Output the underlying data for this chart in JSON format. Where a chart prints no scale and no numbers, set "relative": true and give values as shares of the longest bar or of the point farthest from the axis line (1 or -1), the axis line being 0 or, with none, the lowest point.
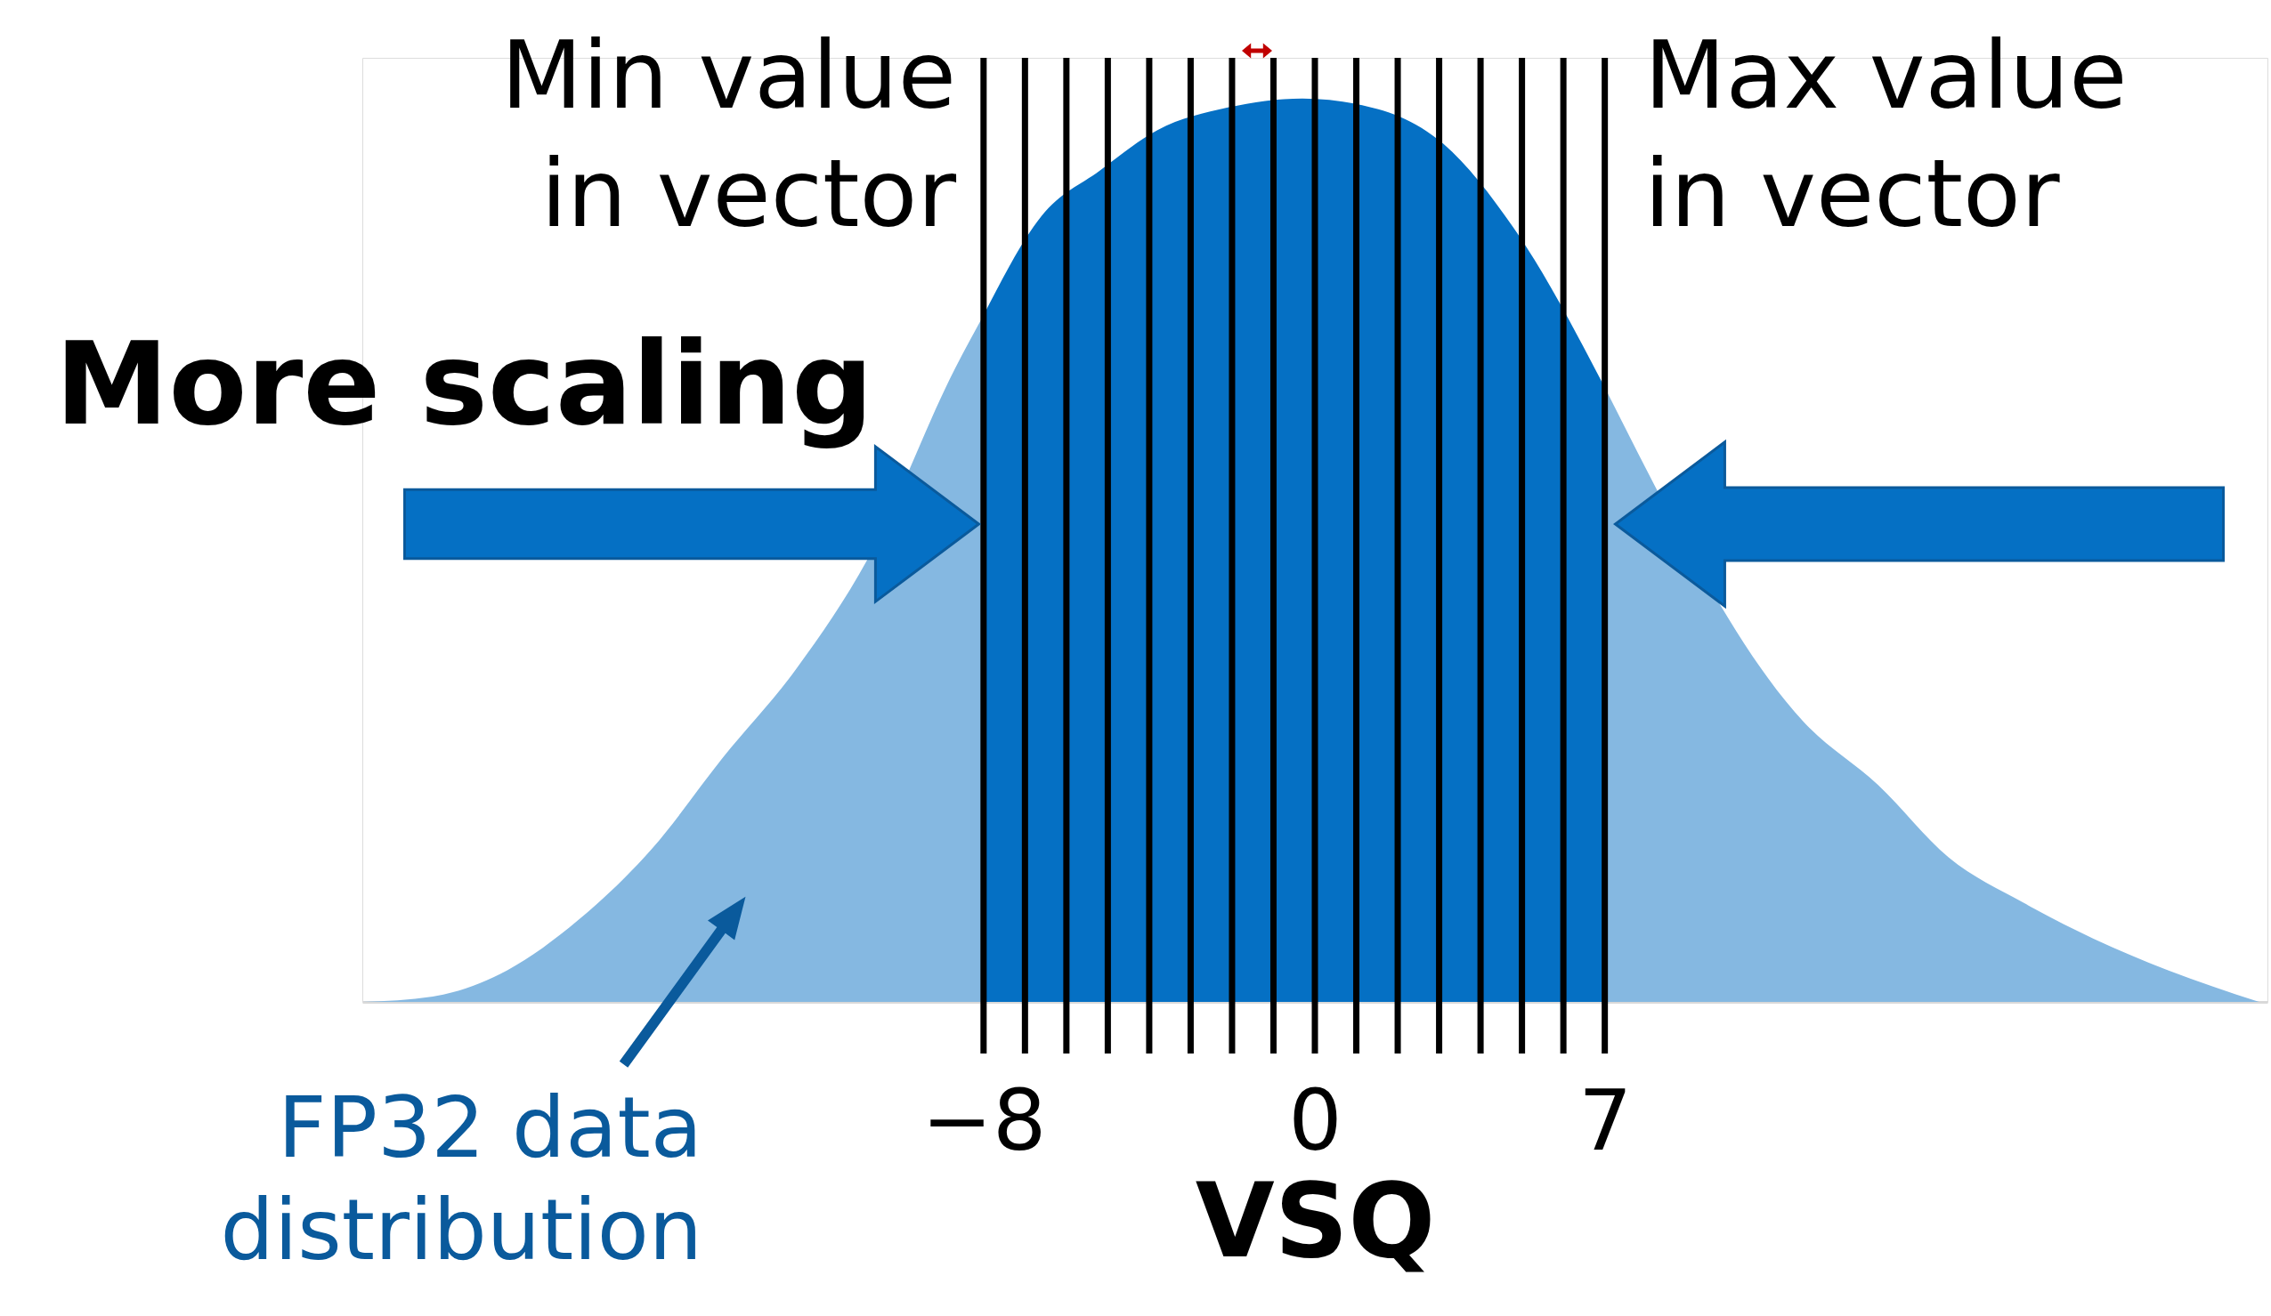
{
  "chart_data": {
    "type": "area",
    "relative": true,
    "xlabel": "VSQ",
    "xlim": [
      -23,
      23
    ],
    "xticks": [
      -8,
      0,
      7
    ],
    "series": [
      {
        "color": "#85b8e1",
        "x": [
          -23.0,
          -21.3,
          -19.5,
          -17.8,
          -16.0,
          -14.3,
          -12.5,
          -10.8,
          -8.7,
          -8.0,
          0,
          7.0,
          11.8,
          13.6,
          15.3,
          17.1,
          18.8,
          20.6,
          22.8
        ],
        "values": [
          0,
          0.006,
          0.035,
          0.09,
          0.17,
          0.27,
          0.37,
          0.49,
          0.7,
          0.76,
          null,
          0.68,
          0.31,
          0.24,
          0.16,
          0.11,
          0.07,
          0.035,
          0
        ]
      },
      {
        "color": "#0570c4",
        "x": [
          -8.0,
          -6.6,
          -5.2,
          -3.8,
          -2.1,
          -0.3,
          1.0,
          3.1,
          4.9,
          7.0
        ],
        "values": [
          0.76,
          0.87,
          0.92,
          0.965,
          0.99,
          1.0,
          0.994,
          0.95,
          0.85,
          0.68
        ]
      }
    ],
    "ref_lines": [
      {
        "axis": "x",
        "value": -8,
        "label": null,
        "color": "#000000"
      },
      {
        "axis": "x",
        "value": -7,
        "label": null,
        "color": "#000000"
      },
      {
        "axis": "x",
        "value": -6,
        "label": null,
        "color": "#000000"
      },
      {
        "axis": "x",
        "value": -5,
        "label": null,
        "color": "#000000"
      },
      {
        "axis": "x",
        "value": -4,
        "label": null,
        "color": "#000000"
      },
      {
        "axis": "x",
        "value": -3,
        "label": null,
        "color": "#000000"
      },
      {
        "axis": "x",
        "value": -2,
        "label": null,
        "color": "#000000"
      },
      {
        "axis": "x",
        "value": -1,
        "label": null,
        "color": "#000000"
      },
      {
        "axis": "x",
        "value": 0,
        "label": null,
        "color": "#000000"
      },
      {
        "axis": "x",
        "value": 1,
        "label": null,
        "color": "#000000"
      },
      {
        "axis": "x",
        "value": 2,
        "label": null,
        "color": "#000000"
      },
      {
        "axis": "x",
        "value": 3,
        "label": null,
        "color": "#000000"
      },
      {
        "axis": "x",
        "value": 4,
        "label": null,
        "color": "#000000"
      },
      {
        "axis": "x",
        "value": 5,
        "label": null,
        "color": "#000000"
      },
      {
        "axis": "x",
        "value": 6,
        "label": null,
        "color": "#000000"
      },
      {
        "axis": "x",
        "value": 7,
        "label": null,
        "color": "#000000"
      }
    ],
    "annotations": [
      "Min value\nin vector",
      "Max value\nin vector",
      "More scaling",
      "FP32 data\ndistribution"
    ]
  }
}
